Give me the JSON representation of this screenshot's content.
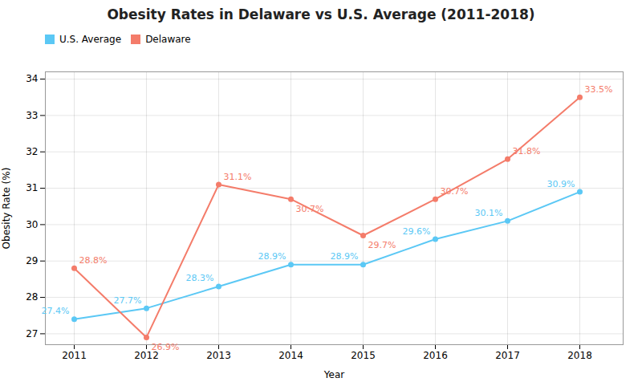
{
  "chart_data": {
    "type": "line",
    "title": "Obesity Rates in Delaware vs U.S. Average (2011-2018)",
    "x_label": "Year",
    "y_label": "Obesity Rate (%)",
    "x": [
      2011,
      2012,
      2013,
      2014,
      2015,
      2016,
      2017,
      2018
    ],
    "series": [
      {
        "name": "U.S. Average",
        "color": "#5BC8F5",
        "marker": "o",
        "values": [
          27.4,
          27.7,
          28.3,
          28.9,
          28.9,
          29.6,
          30.1,
          30.9
        ],
        "value_labels": [
          "27.4%",
          "27.7%",
          "28.3%",
          "28.9%",
          "28.9%",
          "29.6%",
          "30.1%",
          "30.9%"
        ]
      },
      {
        "name": "Delaware",
        "color": "#F47C6A",
        "marker": "o",
        "values": [
          28.8,
          26.9,
          31.1,
          30.7,
          29.7,
          30.7,
          31.8,
          33.5
        ],
        "value_labels": [
          "28.8%",
          "26.9%",
          "31.1%",
          "30.7%",
          "29.7%",
          "30.7%",
          "31.8%",
          "33.5%"
        ]
      }
    ],
    "xlim": [
      2010.6,
      2018.6
    ],
    "xticks": [
      2011,
      2012,
      2013,
      2014,
      2015,
      2016,
      2017,
      2018
    ],
    "ylim": [
      26.7,
      34.2
    ],
    "yticks": [
      27,
      28,
      29,
      30,
      31,
      32,
      33,
      34
    ],
    "grid": true,
    "legend": "upper left",
    "data_labels": true
  }
}
